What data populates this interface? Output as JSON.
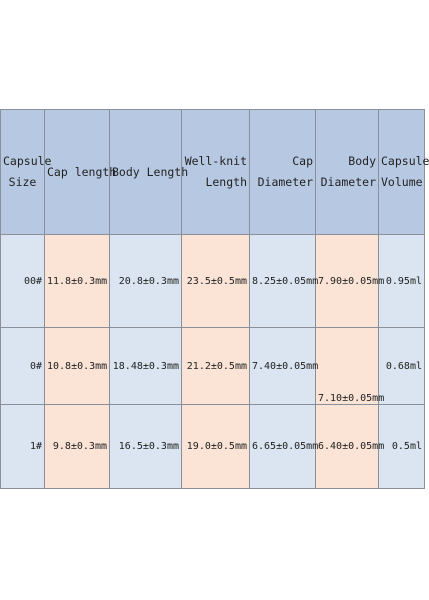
{
  "headers": [
    {
      "line1": "Capsule",
      "line2": "Size"
    },
    {
      "line1": "Cap length",
      "line2": ""
    },
    {
      "line1": "Body Length",
      "line2": ""
    },
    {
      "line1": "Well-knit",
      "line2": "Length"
    },
    {
      "line1": "Cap",
      "line2": "Diameter"
    },
    {
      "line1": "Body",
      "line2": "Diameter"
    },
    {
      "line1": "Capsule",
      "line2": "Volume"
    }
  ],
  "rows": [
    {
      "size": "00#",
      "cap_length": "11.8±0.3mm",
      "body_length": "20.8±0.3mm",
      "well_knit_length": "23.5±0.5mm",
      "cap_diameter": "8.25±0.05mm",
      "body_diameter": "7.90±0.05mm",
      "volume": "0.95ml"
    },
    {
      "size": "0#",
      "cap_length": "10.8±0.3mm",
      "body_length": "18.48±0.3mm",
      "well_knit_length": "21.2±0.5mm",
      "cap_diameter": "7.40±0.05mm",
      "body_diameter": "7.10±0.05mm",
      "volume": "0.68ml"
    },
    {
      "size": "1#",
      "cap_length": "9.8±0.3mm",
      "body_length": "16.5±0.3mm",
      "well_knit_length": "19.0±0.5mm",
      "cap_diameter": "6.65±0.05mm",
      "body_diameter": "6.40±0.05mm",
      "volume": "0.5ml"
    }
  ],
  "colors": {
    "header": "#b7c9e2",
    "blue_cell": "#dbe5f1",
    "peach_cell": "#fbe4d5",
    "border": "#8a8f98"
  }
}
